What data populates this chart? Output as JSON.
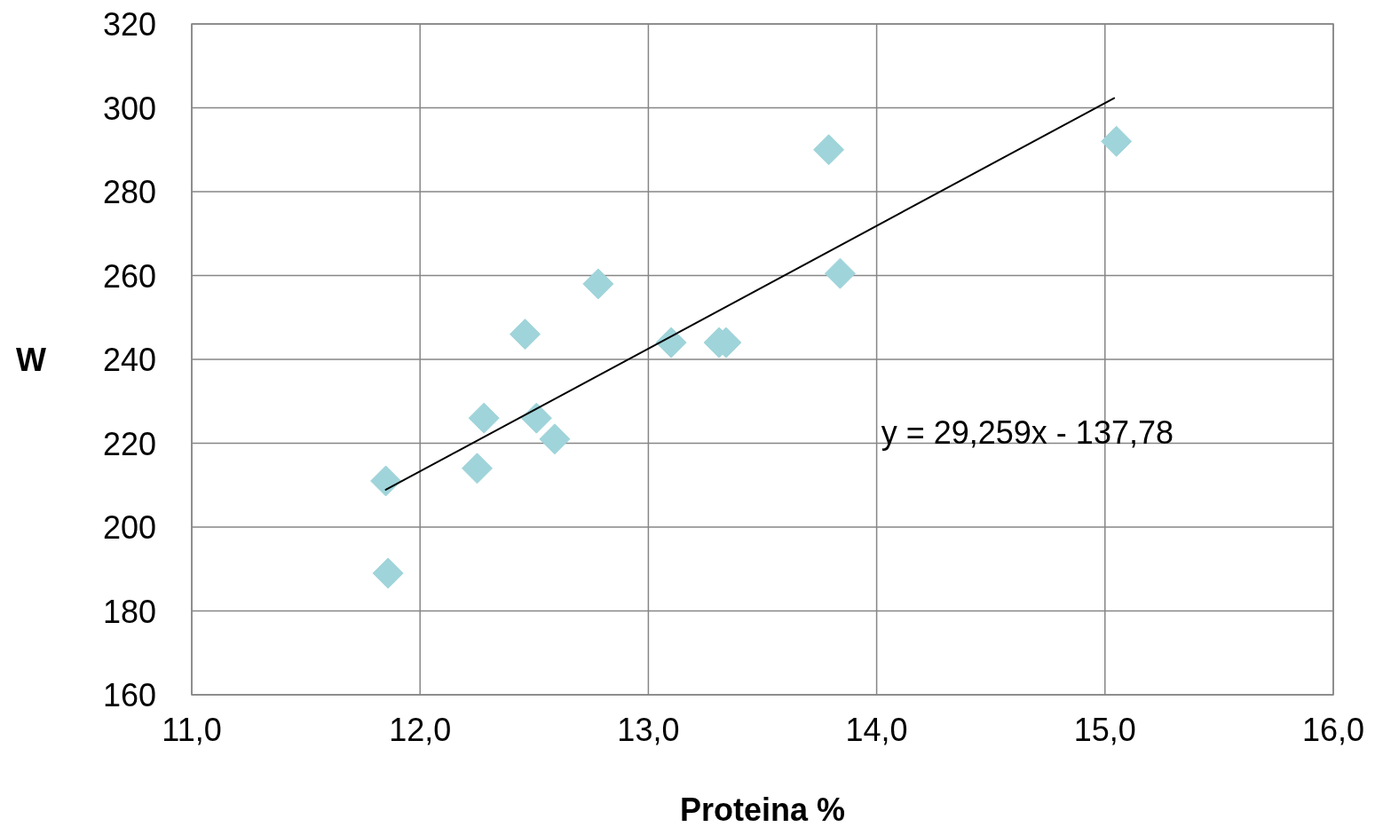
{
  "chart_data": {
    "type": "scatter",
    "xlabel": "Proteina %",
    "ylabel": "W",
    "xlim": [
      11,
      16
    ],
    "xticks": [
      {
        "value": 11,
        "label": "11,0"
      },
      {
        "value": 12,
        "label": "12,0"
      },
      {
        "value": 13,
        "label": "13,0"
      },
      {
        "value": 14,
        "label": "14,0"
      },
      {
        "value": 15,
        "label": "15,0"
      },
      {
        "value": 16,
        "label": "16,0"
      }
    ],
    "ylim": [
      160,
      320
    ],
    "yticks": [
      160,
      180,
      200,
      220,
      240,
      260,
      280,
      300,
      320
    ],
    "grid": true,
    "marker": "diamond",
    "series": [
      {
        "color": "#9fd4da",
        "x": [
          11.85,
          11.86,
          12.25,
          12.28,
          12.46,
          12.51,
          12.59,
          12.78,
          13.1,
          13.31,
          13.34,
          13.79,
          13.84,
          15.05
        ],
        "values": [
          211,
          189,
          214,
          226,
          246,
          226,
          221,
          258,
          244,
          244,
          244,
          290,
          260.5,
          292
        ]
      },
      {
        "type": "line",
        "color": "#000000",
        "marker": "none",
        "x": [
          11.85,
          15.04
        ],
        "values": [
          208.9,
          302.3
        ]
      }
    ],
    "annotations": [
      "y = 29,259x - 137,78"
    ]
  }
}
